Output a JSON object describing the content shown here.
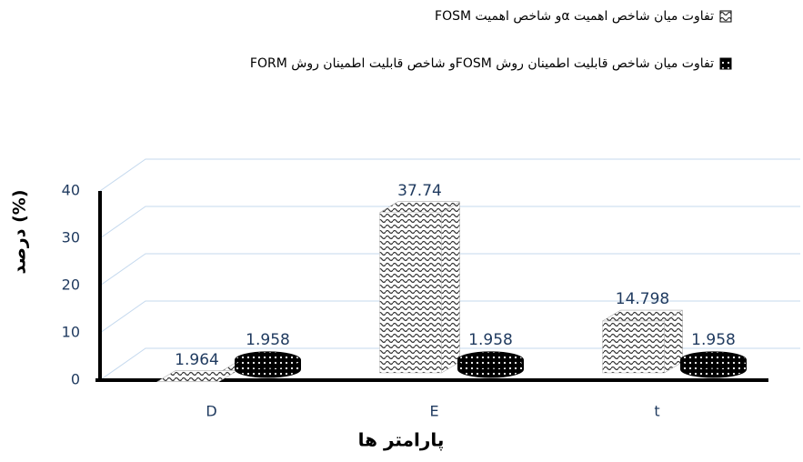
{
  "chart_data": {
    "type": "bar3d",
    "categories": [
      "D",
      "E",
      "t"
    ],
    "series": [
      {
        "name": "تفاوت میان شاخص اهمیت  αو شاخص اهمیت FOSM",
        "color": "#333333",
        "values": [
          1.964,
          37.74,
          14.798
        ]
      },
      {
        "name": "تفاوت میان شاخص قابلیت اطمینان روش  FOSMو شاخص قابلیت اطمینان روش FORM",
        "color": "#000000",
        "values": [
          1.958,
          1.958,
          1.958
        ]
      }
    ],
    "y_label": "درصد (%)",
    "x_label": "پارامتر ها",
    "ylim": [
      0,
      40
    ],
    "yticks": [
      0,
      10,
      20,
      30,
      40
    ],
    "grid": true,
    "legend": "top"
  }
}
